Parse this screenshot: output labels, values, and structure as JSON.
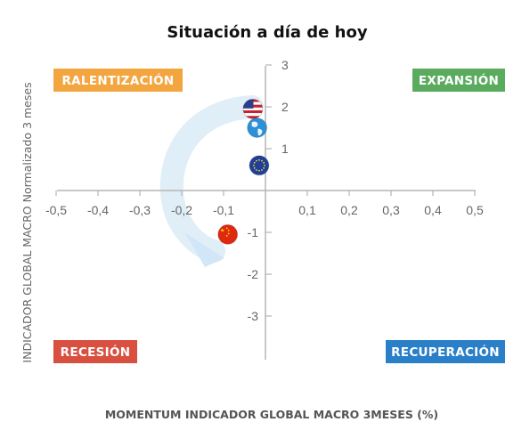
{
  "chart_data": {
    "type": "scatter",
    "title": "Situación a día de hoy",
    "xlabel": "MOMENTUM INDICADOR GLOBAL MACRO 3MESES (%)",
    "ylabel": "INDICADOR GLOBAL MACRO Normalizado 3 meses",
    "xlim": [
      -0.5,
      0.5
    ],
    "ylim": [
      -3,
      3
    ],
    "x_ticks": [
      -0.5,
      -0.4,
      -0.3,
      -0.2,
      -0.1,
      0.1,
      0.2,
      0.3,
      0.4,
      0.5
    ],
    "x_tick_labels": [
      "-0,5",
      "-0,4",
      "-0,3",
      "-0,2",
      "-0,1",
      "0,1",
      "0,2",
      "0,3",
      "0,4",
      "0,5"
    ],
    "y_ticks": [
      3,
      2,
      1,
      -1,
      -2,
      -3
    ],
    "y_tick_labels": [
      "3",
      "2",
      "1",
      "-1",
      "-2",
      "-3"
    ],
    "grid": false,
    "points": [
      {
        "flag": "usa-flag-icon",
        "x": -0.03,
        "y": 1.95
      },
      {
        "flag": "world-globe-icon",
        "x": -0.02,
        "y": 1.5
      },
      {
        "flag": "eu-flag-icon",
        "x": -0.015,
        "y": 0.6
      },
      {
        "flag": "china-flag-icon",
        "x": -0.09,
        "y": -1.05
      }
    ],
    "quadrants": [
      {
        "label": "RALENTIZACIÓN",
        "color": "#f3a640",
        "position": "top-left"
      },
      {
        "label": "EXPANSIÓN",
        "color": "#5aab5e",
        "position": "top-right"
      },
      {
        "label": "RECESIÓN",
        "color": "#d95040",
        "position": "bottom-left"
      },
      {
        "label": "RECUPERACIÓN",
        "color": "#2a7fc9",
        "position": "bottom-right"
      }
    ],
    "trend_arrow": {
      "color": "#cfe4f5",
      "direction": "top-right to bottom-left"
    }
  }
}
